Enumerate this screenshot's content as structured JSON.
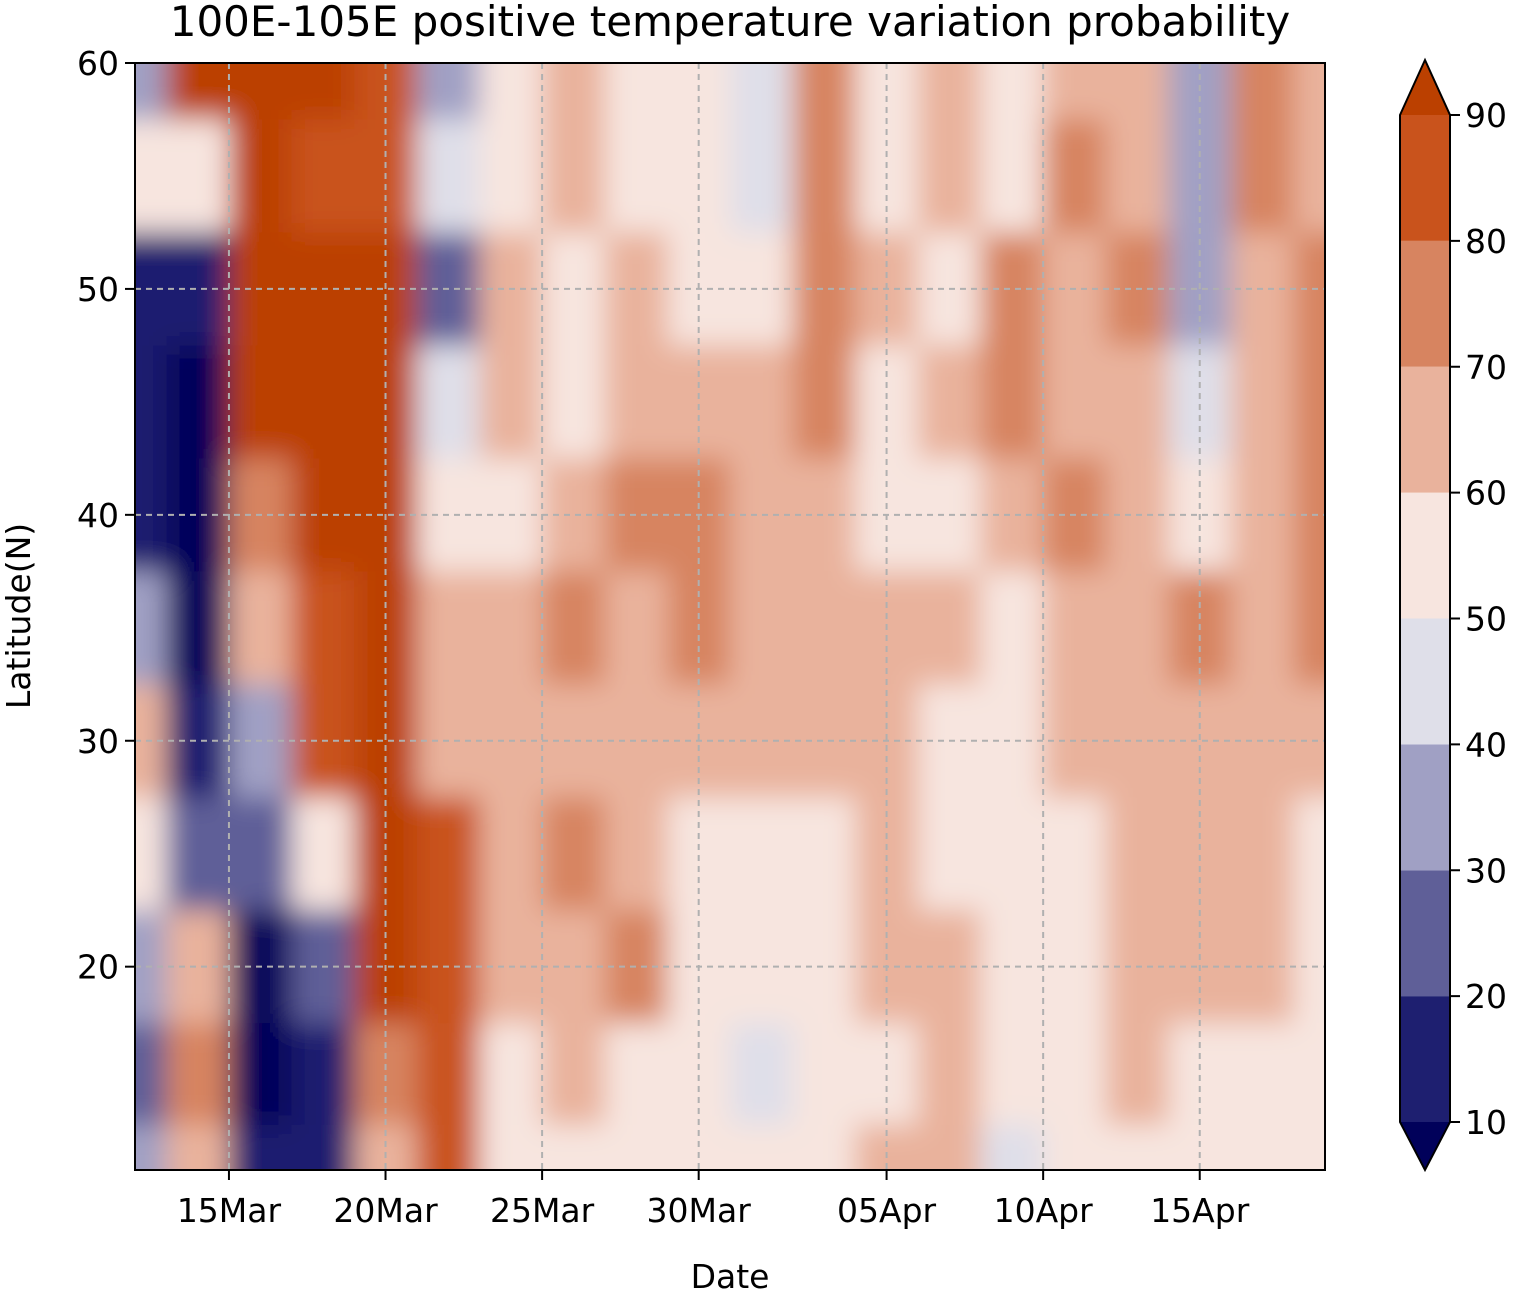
{
  "chart_data": {
    "type": "heatmap",
    "subtype": "filled-contour",
    "title": "100E-105E positive temperature variation probability",
    "xlabel": "Date",
    "ylabel": "Latitude(N)",
    "x_range": [
      "2020-03-12",
      "2020-04-19"
    ],
    "x_ticks": [
      {
        "date": "2020-03-15",
        "label": "15Mar"
      },
      {
        "date": "2020-03-20",
        "label": "20Mar"
      },
      {
        "date": "2020-03-25",
        "label": "25Mar"
      },
      {
        "date": "2020-03-30",
        "label": "30Mar"
      },
      {
        "date": "2020-04-05",
        "label": "05Apr"
      },
      {
        "date": "2020-04-10",
        "label": "10Apr"
      },
      {
        "date": "2020-04-15",
        "label": "15Apr"
      }
    ],
    "ylim": [
      11,
      60
    ],
    "y_ticks": [
      20,
      30,
      40,
      50,
      60
    ],
    "grid": true,
    "colorbar": {
      "levels": [
        10,
        20,
        30,
        40,
        50,
        60,
        70,
        80,
        90
      ],
      "labels": [
        "10",
        "20",
        "30",
        "40",
        "50",
        "60",
        "70",
        "80",
        "90"
      ],
      "extend": "both",
      "under_color": "#01015a",
      "over_color": "#bb4000",
      "band_colors": [
        "#1e1f70",
        "#5f5f98",
        "#a0a0c4",
        "#dfdfe9",
        "#f7e5df",
        "#e9b29c",
        "#d78460",
        "#c9531c"
      ]
    },
    "value_grid": {
      "description": "Approximate probability (%) read from the filled contours, rows from 60N down to ~11N, columns daily from 12 Mar to 19 Apr",
      "lats": [
        60,
        55,
        50,
        45,
        40,
        35,
        30,
        25,
        20,
        15,
        11
      ],
      "dates": [
        "2020-03-12",
        "2020-03-14",
        "2020-03-16",
        "2020-03-18",
        "2020-03-20",
        "2020-03-22",
        "2020-03-24",
        "2020-03-26",
        "2020-03-28",
        "2020-03-30",
        "2020-04-01",
        "2020-04-03",
        "2020-04-05",
        "2020-04-07",
        "2020-04-09",
        "2020-04-11",
        "2020-04-13",
        "2020-04-15",
        "2020-04-17",
        "2020-04-19"
      ],
      "values": [
        [
          30,
          92,
          92,
          92,
          85,
          35,
          55,
          60,
          58,
          55,
          45,
          70,
          55,
          60,
          55,
          62,
          60,
          35,
          75,
          60
        ],
        [
          50,
          55,
          92,
          85,
          80,
          40,
          55,
          65,
          52,
          58,
          48,
          75,
          58,
          62,
          58,
          70,
          65,
          35,
          72,
          62
        ],
        [
          15,
          15,
          92,
          92,
          92,
          22,
          65,
          58,
          62,
          55,
          50,
          75,
          60,
          55,
          70,
          62,
          70,
          30,
          65,
          75
        ],
        [
          12,
          8,
          92,
          92,
          92,
          40,
          62,
          55,
          62,
          65,
          62,
          75,
          55,
          62,
          72,
          62,
          65,
          40,
          62,
          72
        ],
        [
          12,
          8,
          75,
          92,
          92,
          50,
          55,
          65,
          72,
          72,
          62,
          65,
          55,
          58,
          62,
          72,
          62,
          58,
          62,
          72
        ],
        [
          30,
          8,
          65,
          88,
          92,
          62,
          62,
          70,
          65,
          75,
          62,
          62,
          68,
          60,
          55,
          62,
          62,
          70,
          62,
          72
        ],
        [
          60,
          12,
          30,
          88,
          92,
          60,
          60,
          62,
          62,
          62,
          65,
          60,
          62,
          55,
          55,
          62,
          62,
          62,
          62,
          60
        ],
        [
          52,
          20,
          20,
          55,
          92,
          82,
          62,
          70,
          62,
          58,
          58,
          55,
          65,
          58,
          55,
          58,
          62,
          62,
          62,
          58
        ],
        [
          30,
          65,
          8,
          25,
          92,
          85,
          62,
          62,
          70,
          55,
          55,
          55,
          62,
          62,
          55,
          55,
          62,
          65,
          62,
          55
        ],
        [
          25,
          72,
          8,
          18,
          70,
          85,
          55,
          62,
          55,
          55,
          45,
          55,
          55,
          60,
          55,
          50,
          62,
          55,
          55,
          50
        ],
        [
          35,
          60,
          10,
          15,
          65,
          80,
          50,
          55,
          52,
          55,
          50,
          55,
          62,
          65,
          45,
          55,
          55,
          52,
          55,
          50
        ]
      ]
    }
  }
}
